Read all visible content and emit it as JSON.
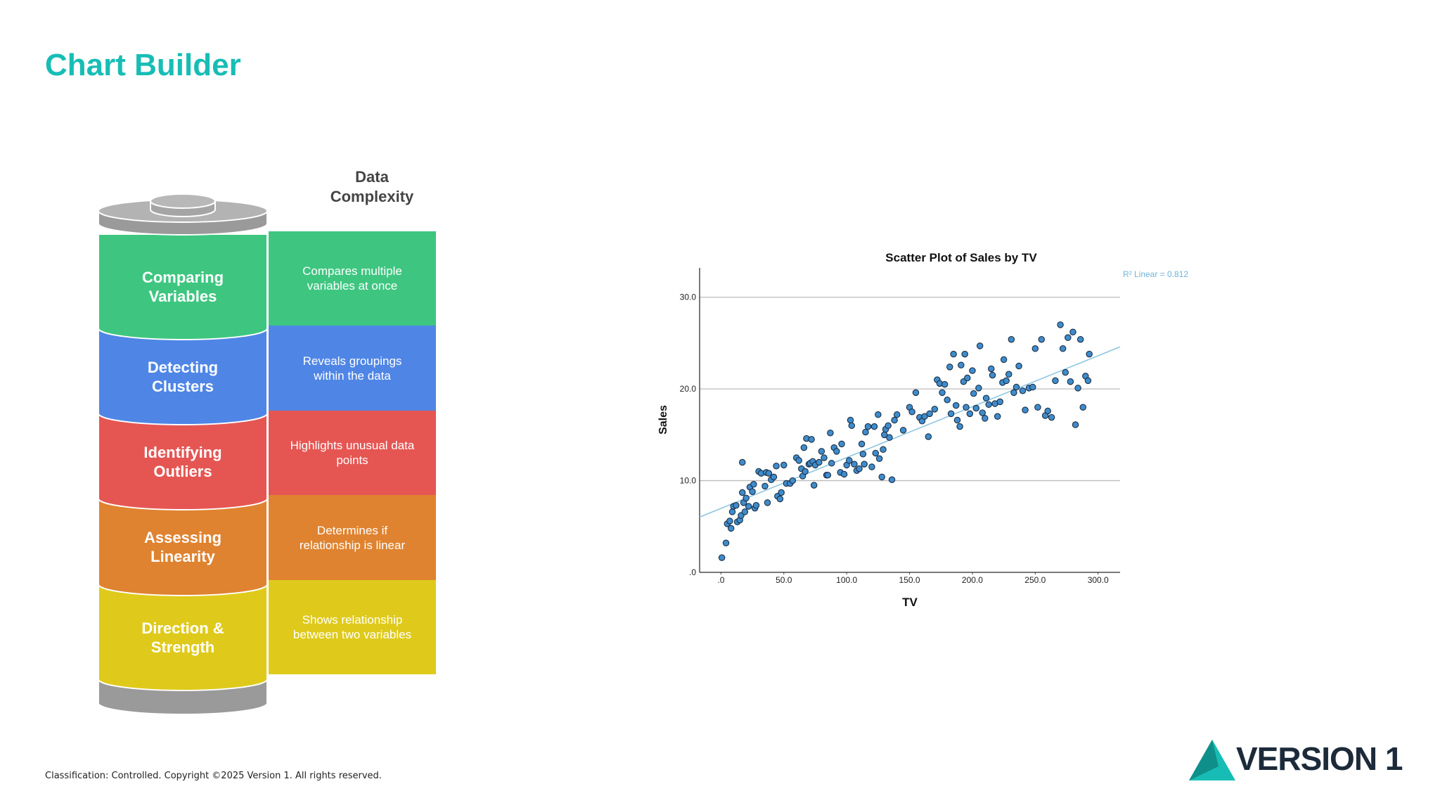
{
  "title": "Chart Builder",
  "diagram": {
    "header": "Data Complexity",
    "layers": [
      {
        "label": "Comparing Variables",
        "description": "Compares multiple variables at once",
        "color": "#3ec680"
      },
      {
        "label": "Detecting Clusters",
        "description": "Reveals groupings within the data",
        "color": "#4f86e6"
      },
      {
        "label": "Identifying Outliers",
        "description": "Highlights unusual data points",
        "color": "#e55653"
      },
      {
        "label": "Assessing Linearity",
        "description": "Determines if relationship is linear",
        "color": "#df8330"
      },
      {
        "label": "Direction & Strength",
        "description": "Shows relationship between two variables",
        "color": "#dfca1b"
      }
    ]
  },
  "chart_data": {
    "type": "scatter",
    "title": "Scatter Plot of Sales by TV",
    "x_label": "TV",
    "y_label": "Sales",
    "annotation": "R² Linear = 0.812",
    "fit": {
      "intercept": 6.97,
      "slope": 0.0555,
      "color": "#8ec5e2"
    },
    "color": "#3f8ccc",
    "xlim": [
      -17,
      317.5
    ],
    "ylim": [
      0,
      33.2
    ],
    "xticks": [
      {
        "value": 0,
        "label": ".0"
      },
      {
        "value": 50,
        "label": "50.0"
      },
      {
        "value": 100,
        "label": "100.0"
      },
      {
        "value": 150,
        "label": "150.0"
      },
      {
        "value": 200,
        "label": "200.0"
      },
      {
        "value": 250,
        "label": "250.0"
      },
      {
        "value": 300,
        "label": "300.0"
      }
    ],
    "yticks": [
      {
        "value": 0,
        "label": ".0"
      },
      {
        "value": 10,
        "label": "10.0"
      },
      {
        "value": 20,
        "label": "20.0"
      },
      {
        "value": 30,
        "label": "30.0"
      }
    ],
    "grid": true,
    "x": [
      0.7,
      4,
      5,
      7,
      8,
      9,
      10,
      12,
      13,
      15,
      16,
      17,
      17,
      18,
      19,
      20,
      22,
      23,
      25,
      26,
      27,
      28,
      30,
      32,
      35,
      36,
      37,
      38,
      40,
      42,
      44,
      45,
      47,
      48,
      50,
      52,
      55,
      57,
      60,
      62,
      64,
      65,
      66,
      67,
      68,
      70,
      71,
      72,
      73,
      74,
      75,
      78,
      80,
      82,
      84,
      85,
      87,
      88,
      90,
      92,
      95,
      96,
      98,
      100,
      102,
      103,
      104,
      106,
      108,
      110,
      112,
      113,
      114,
      115,
      117,
      120,
      122,
      123,
      125,
      126,
      128,
      129,
      130,
      131,
      133,
      134,
      136,
      138,
      140,
      145,
      150,
      152,
      155,
      158,
      160,
      162,
      165,
      166,
      170,
      172,
      174,
      176,
      178,
      180,
      182,
      183,
      185,
      187,
      188,
      190,
      191,
      193,
      194,
      195,
      196,
      198,
      200,
      201,
      203,
      205,
      206,
      208,
      210,
      211,
      213,
      215,
      216,
      218,
      220,
      222,
      224,
      225,
      227,
      229,
      231,
      233,
      235,
      237,
      240,
      242,
      245,
      248,
      250,
      252,
      255,
      258,
      260,
      263,
      266,
      270,
      272,
      274,
      276,
      278,
      280,
      282,
      284,
      286,
      288,
      290,
      292,
      293
    ],
    "values": [
      1.6,
      3.2,
      5.3,
      5.6,
      4.8,
      6.6,
      7.2,
      7.3,
      5.5,
      5.7,
      6.2,
      8.7,
      12,
      7.6,
      6.6,
      8.1,
      7.2,
      9.3,
      8.8,
      9.6,
      7,
      7.3,
      11,
      10.8,
      9.4,
      10.9,
      7.6,
      10.8,
      10.1,
      10.4,
      11.6,
      8.3,
      8,
      8.7,
      11.7,
      9.7,
      9.7,
      10,
      12.5,
      12.2,
      11.3,
      10.5,
      13.6,
      11,
      14.6,
      11.8,
      11.9,
      14.5,
      12.1,
      9.5,
      11.7,
      12,
      13.2,
      12.5,
      10.6,
      10.6,
      15.2,
      11.9,
      13.6,
      13.2,
      10.9,
      14,
      10.7,
      11.7,
      12.2,
      16.6,
      16,
      11.8,
      11.1,
      11.3,
      14,
      12.9,
      11.8,
      15.3,
      15.9,
      11.5,
      15.9,
      13,
      17.2,
      12.4,
      10.4,
      13.4,
      15,
      15.6,
      16,
      14.7,
      10.1,
      16.6,
      17.2,
      15.5,
      18,
      17.5,
      19.6,
      16.9,
      16.5,
      17,
      14.8,
      17.3,
      17.8,
      21,
      20.6,
      19.6,
      20.5,
      18.8,
      22.4,
      17.3,
      23.8,
      18.2,
      16.6,
      15.9,
      22.6,
      20.8,
      23.8,
      18,
      21.2,
      17.3,
      22,
      19.5,
      17.9,
      20.1,
      24.7,
      17.4,
      16.8,
      19,
      18.3,
      22.2,
      21.5,
      18.4,
      17,
      18.6,
      20.7,
      23.2,
      20.9,
      21.6,
      25.4,
      19.6,
      20.2,
      22.5,
      19.8,
      17.7,
      20.1,
      20.2,
      24.4,
      18,
      25.4,
      17.1,
      17.6,
      16.9,
      20.9,
      27,
      24.4,
      21.8,
      25.6,
      20.8,
      26.2,
      16.1,
      20.1,
      25.4,
      18,
      21.4,
      20.9,
      23.8
    ]
  },
  "footer": "Classification: Controlled. Copyright ©2025 Version 1. All rights reserved.",
  "logo": "VERSION 1"
}
